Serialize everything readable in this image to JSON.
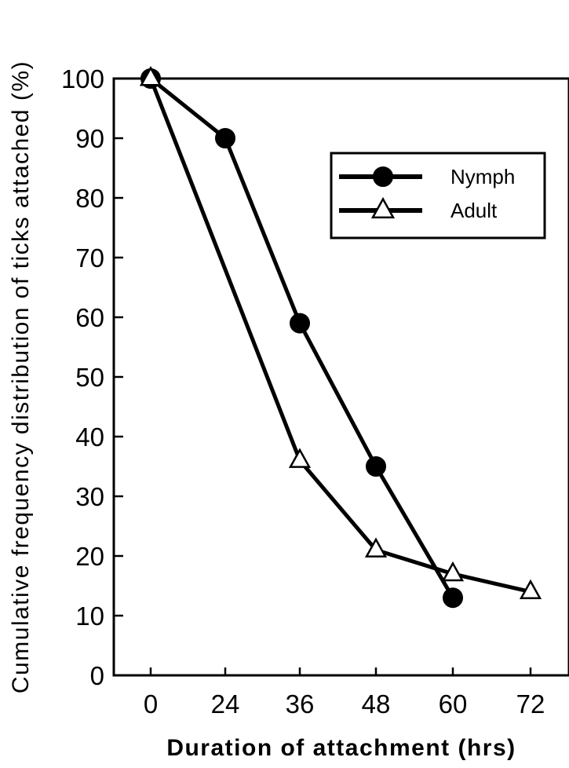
{
  "chart_data": {
    "type": "line",
    "title": "",
    "xlabel": "Duration of attachment (hrs)",
    "ylabel": "Cumulative frequency distribution of ticks attached (%)",
    "x_categories": [
      "0",
      "24",
      "36",
      "48",
      "60",
      "72"
    ],
    "yticks": [
      "0",
      "10",
      "20",
      "30",
      "40",
      "50",
      "60",
      "70",
      "80",
      "90",
      "100"
    ],
    "ylim": [
      0,
      100
    ],
    "grid": false,
    "legend_position": "top-right",
    "series": [
      {
        "name": "Nymph",
        "marker": "filled-circle",
        "color": "#000000",
        "x": [
          "0",
          "24",
          "36",
          "48",
          "60"
        ],
        "values": [
          100,
          90,
          59,
          35,
          13
        ]
      },
      {
        "name": "Adult",
        "marker": "open-triangle",
        "color": "#000000",
        "x": [
          "0",
          "36",
          "48",
          "60",
          "72"
        ],
        "values": [
          100,
          36,
          21,
          17,
          14
        ]
      }
    ]
  }
}
